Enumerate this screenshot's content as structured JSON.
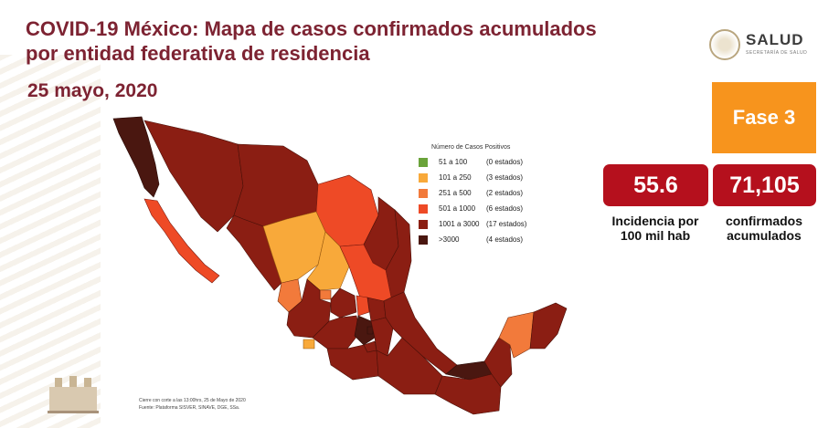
{
  "header": {
    "title_line1": "COVID-19 México: Mapa de casos confirmados acumulados",
    "title_line2": "por entidad federativa de residencia",
    "date": "25 mayo, 2020"
  },
  "logo": {
    "word": "SALUD",
    "subtitle": "SECRETARÍA DE SALUD"
  },
  "phase": {
    "label": "Fase 3",
    "color": "#f7941d"
  },
  "stats": {
    "incidence": {
      "value": "55.6",
      "label_line1": "Incidencia por",
      "label_line2": "100 mil hab"
    },
    "confirmed": {
      "value": "71,105",
      "label_line1": "confirmados",
      "label_line2": "acumulados"
    },
    "box_color": "#b5101d"
  },
  "legend": {
    "title": "Número de Casos Positivos",
    "items": [
      {
        "range": "51 a 100",
        "count": "(0 estados)",
        "color": "#6aa33a"
      },
      {
        "range": "101 a 250",
        "count": "(3 estados)",
        "color": "#f8a93a"
      },
      {
        "range": "251 a 500",
        "count": "(2 estados)",
        "color": "#f27a3b"
      },
      {
        "range": "501 a 1000",
        "count": "(6 estados)",
        "color": "#ee4a26"
      },
      {
        "range": "1001 a 3000",
        "count": "(17 estados)",
        "color": "#8b1e13"
      },
      {
        "range": ">3000",
        "count": "(4 estados)",
        "color": "#4a1710"
      }
    ]
  },
  "footnote": {
    "line1": "Cierre con corte a las 13:00hrs, 25 de Mayo de 2020",
    "line2": "Fuente: Plataforma SISVER, SINAVE, DGE, SSa."
  }
}
